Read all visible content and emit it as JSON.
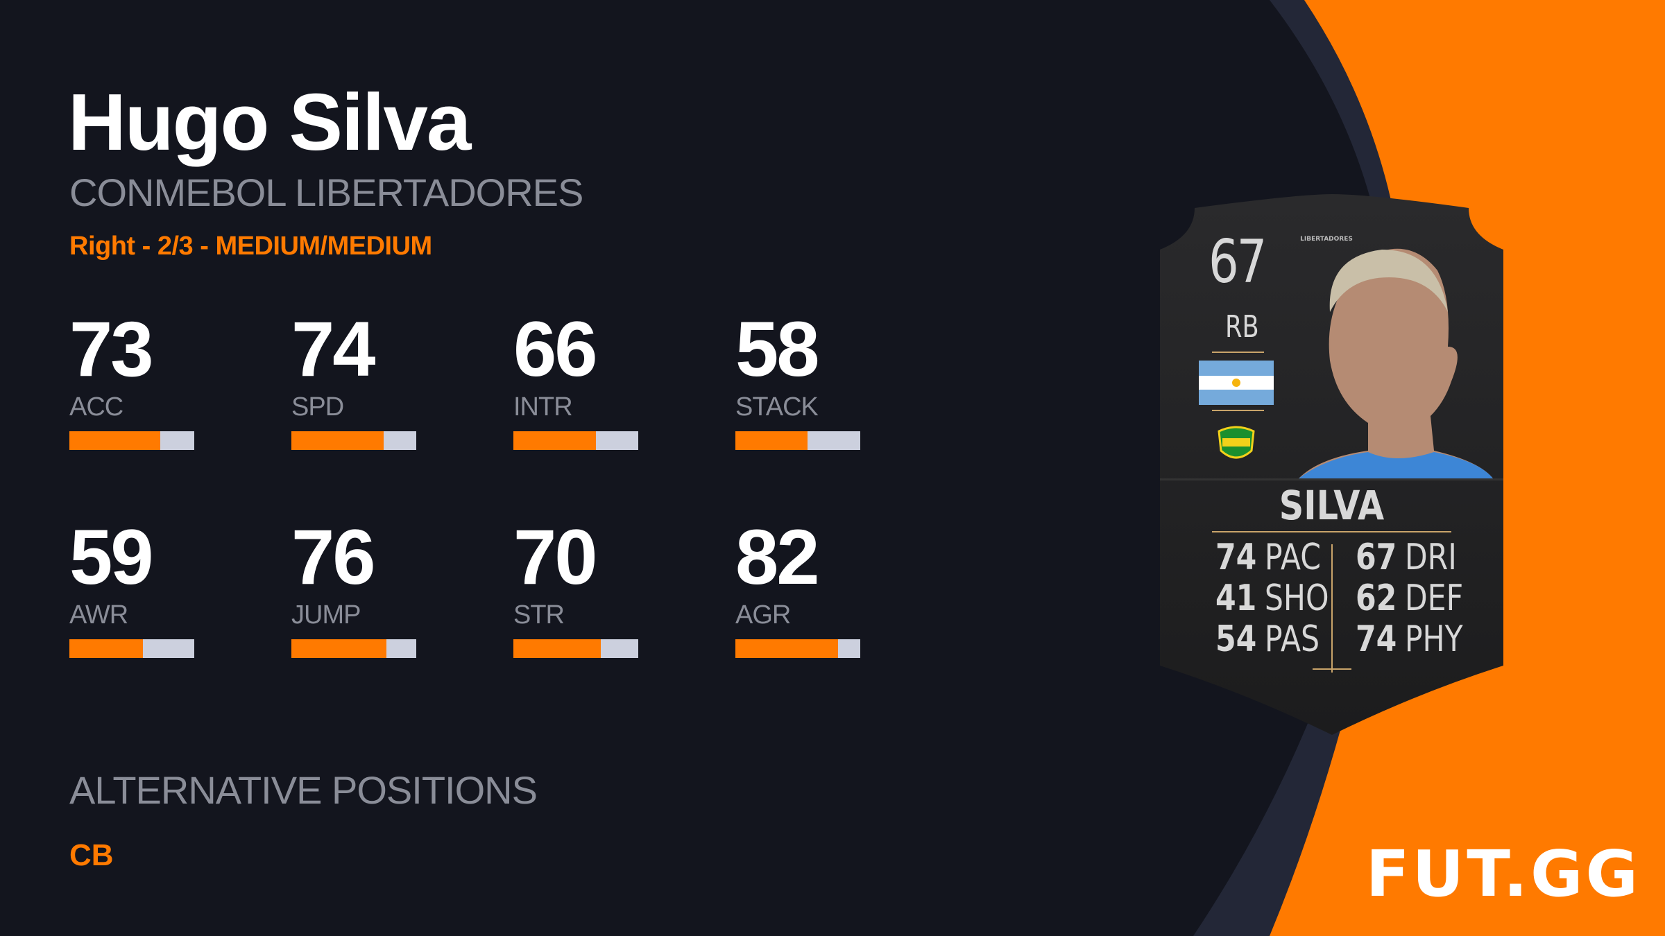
{
  "player": {
    "name": "Hugo Silva",
    "version": "CONMEBOL LIBERTADORES",
    "attributes_line": "Right - 2/3 - MEDIUM/MEDIUM"
  },
  "stats": [
    {
      "label": "ACC",
      "value": "73",
      "fill": 0.73
    },
    {
      "label": "SPD",
      "value": "74",
      "fill": 0.74
    },
    {
      "label": "INTR",
      "value": "66",
      "fill": 0.66
    },
    {
      "label": "STACK",
      "value": "58",
      "fill": 0.58
    },
    {
      "label": "AWR",
      "value": "59",
      "fill": 0.59
    },
    {
      "label": "JUMP",
      "value": "76",
      "fill": 0.76
    },
    {
      "label": "STR",
      "value": "70",
      "fill": 0.7
    },
    {
      "label": "AGR",
      "value": "82",
      "fill": 0.82
    }
  ],
  "alternative_positions": {
    "heading": "ALTERNATIVE POSITIONS",
    "value": "CB"
  },
  "card": {
    "rating": "67",
    "position": "RB",
    "league_logo_text": "LIBERTADORES",
    "nation_flag": "argentina-flag",
    "club_badge": "defensa-y-justicia-badge",
    "name": "SILVA",
    "left_stats": [
      {
        "value": "74",
        "label": "PAC"
      },
      {
        "value": "41",
        "label": "SHO"
      },
      {
        "value": "54",
        "label": "PAS"
      }
    ],
    "right_stats": [
      {
        "value": "67",
        "label": "DRI"
      },
      {
        "value": "62",
        "label": "DEF"
      },
      {
        "value": "74",
        "label": "PHY"
      }
    ]
  },
  "brand": {
    "logo": "FUT.GG",
    "accent": "#ff7a00",
    "background": "#13151e"
  }
}
